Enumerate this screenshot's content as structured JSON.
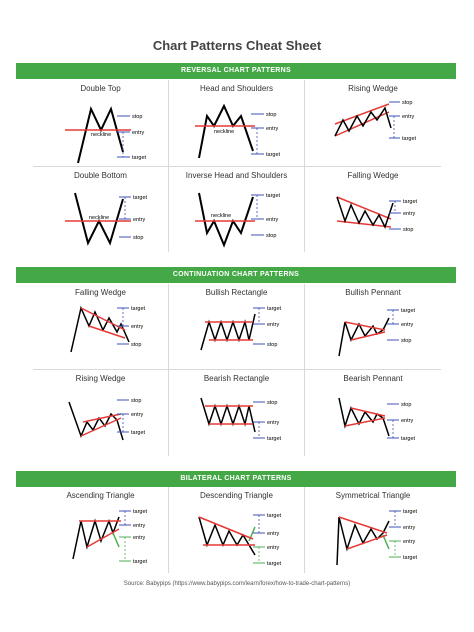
{
  "title": "Chart Patterns Cheat Sheet",
  "colors": {
    "banner": "#45a847",
    "line": "#000000",
    "support": "#e53935",
    "target": "#3f51b5",
    "bilateral_down": "#4caf50"
  },
  "sections": [
    {
      "banner": "REVERSAL CHART PATTERNS",
      "patterns": [
        {
          "name": "Double Top",
          "labels": {
            "stop": "stop",
            "entry": "entry",
            "target": "target",
            "neckline": "neckline"
          }
        },
        {
          "name": "Head and Shoulders",
          "labels": {
            "stop": "stop",
            "entry": "entry",
            "target": "target",
            "neckline": "neckline"
          }
        },
        {
          "name": "Rising Wedge",
          "labels": {
            "stop": "stop",
            "entry": "entry",
            "target": "target"
          }
        },
        {
          "name": "Double Bottom",
          "labels": {
            "stop": "stop",
            "entry": "entry",
            "target": "target",
            "neckline": "neckline"
          }
        },
        {
          "name": "Inverse Head and Shoulders",
          "labels": {
            "stop": "stop",
            "entry": "entry",
            "target": "target",
            "neckline": "neckline"
          }
        },
        {
          "name": "Falling Wedge",
          "labels": {
            "stop": "stop",
            "entry": "entry",
            "target": "target"
          }
        }
      ]
    },
    {
      "banner": "CONTINUATION CHART PATTERNS",
      "patterns": [
        {
          "name": "Falling Wedge",
          "labels": {
            "stop": "stop",
            "entry": "entry",
            "target": "target"
          }
        },
        {
          "name": "Bullish Rectangle",
          "labels": {
            "stop": "stop",
            "entry": "entry",
            "target": "target"
          }
        },
        {
          "name": "Bullish Pennant",
          "labels": {
            "stop": "stop",
            "entry": "entry",
            "target": "target"
          }
        },
        {
          "name": "Rising Wedge",
          "labels": {
            "stop": "stop",
            "entry": "entry",
            "target": "target"
          }
        },
        {
          "name": "Bearish Rectangle",
          "labels": {
            "stop": "stop",
            "entry": "entry",
            "target": "target"
          }
        },
        {
          "name": "Bearish Pennant",
          "labels": {
            "stop": "stop",
            "entry": "entry",
            "target": "target"
          }
        }
      ]
    },
    {
      "banner": "BILATERAL CHART PATTERNS",
      "patterns": [
        {
          "name": "Ascending Triangle",
          "labels": {
            "entry": "entry",
            "target": "target"
          }
        },
        {
          "name": "Descending Triangle",
          "labels": {
            "entry": "entry",
            "target": "target"
          }
        },
        {
          "name": "Symmetrical Triangle",
          "labels": {
            "entry": "entry",
            "target": "target"
          }
        }
      ]
    }
  ],
  "source": "Source: Babypips (https://www.babypips.com/learn/forex/how-to-trade-chart-patterns)"
}
